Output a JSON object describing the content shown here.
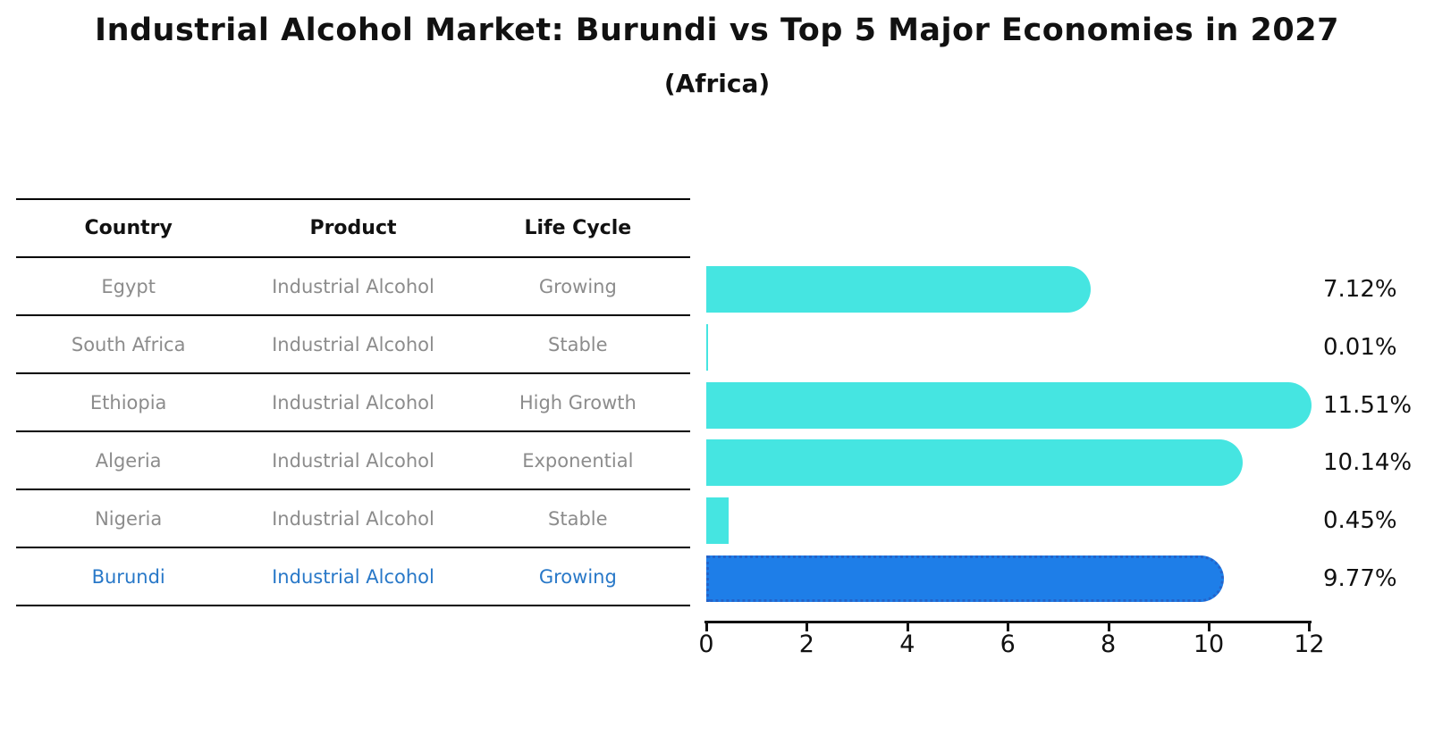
{
  "title": "Industrial Alcohol Market: Burundi vs Top 5 Major Economies in 2027",
  "subtitle": "(Africa)",
  "table": {
    "headers": [
      "Country",
      "Product",
      "Life Cycle"
    ],
    "rows": [
      {
        "country": "Egypt",
        "product": "Industrial Alcohol",
        "life_cycle": "Growing",
        "highlight": false
      },
      {
        "country": "South Africa",
        "product": "Industrial Alcohol",
        "life_cycle": "Stable",
        "highlight": false
      },
      {
        "country": "Ethiopia",
        "product": "Industrial Alcohol",
        "life_cycle": "High Growth",
        "highlight": false
      },
      {
        "country": "Algeria",
        "product": "Industrial Alcohol",
        "life_cycle": "Exponential",
        "highlight": false
      },
      {
        "country": "Nigeria",
        "product": "Industrial Alcohol",
        "life_cycle": "Stable",
        "highlight": false
      },
      {
        "country": "Burundi",
        "product": "Industrial Alcohol",
        "life_cycle": "Growing",
        "highlight": true
      }
    ]
  },
  "chart_data": {
    "type": "bar",
    "orientation": "horizontal",
    "title": "Industrial Alcohol Market: Burundi vs Top 5 Major Economies in 2027",
    "subtitle": "(Africa)",
    "categories": [
      "Egypt",
      "South Africa",
      "Ethiopia",
      "Algeria",
      "Nigeria",
      "Burundi"
    ],
    "values": [
      7.12,
      0.01,
      11.51,
      10.14,
      0.45,
      9.77
    ],
    "value_labels": [
      "7.12%",
      "0.01%",
      "11.51%",
      "10.14%",
      "0.45%",
      "9.77%"
    ],
    "highlight_index": 5,
    "xlim": [
      0,
      12
    ],
    "x_ticks": [
      0,
      2,
      4,
      6,
      8,
      10,
      12
    ],
    "grid": false,
    "legend": "none",
    "colors": {
      "bar": "#45e5e1",
      "highlight_bar": "#1e7ee8",
      "highlight_border": "#2563c9",
      "table_text": "#8c8c8c",
      "highlight_text": "#2878c8",
      "axis": "#111111"
    }
  }
}
